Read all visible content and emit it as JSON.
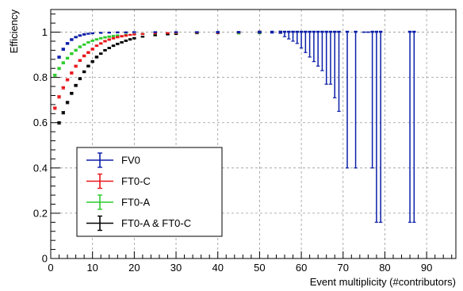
{
  "chart_data": {
    "type": "scatter",
    "style": "error-bars",
    "xlabel": "Event multiplicity (#contributors)",
    "ylabel": "Efficiency",
    "xlim": [
      0,
      97
    ],
    "ylim": [
      0,
      1.1
    ],
    "x_ticks": [
      "0",
      "10",
      "20",
      "30",
      "40",
      "50",
      "60",
      "70",
      "80",
      "90"
    ],
    "y_ticks": [
      "0",
      "0.2",
      "0.4",
      "0.6",
      "0.8",
      "1"
    ],
    "grid": true,
    "legend_position": "bottom-left",
    "series": [
      {
        "name": "FV0",
        "color": "#0b1ea8",
        "points": [
          [
            2,
            0.89,
            0.005
          ],
          [
            3,
            0.925,
            0.005
          ],
          [
            4,
            0.95,
            0.004
          ],
          [
            5,
            0.967,
            0.004
          ],
          [
            6,
            0.978,
            0.003
          ],
          [
            7,
            0.985,
            0.003
          ],
          [
            8,
            0.99,
            0.003
          ],
          [
            9,
            0.993,
            0.002
          ],
          [
            10,
            0.995,
            0.002
          ],
          [
            12,
            0.997,
            0.002
          ],
          [
            14,
            0.998,
            0.002
          ],
          [
            16,
            0.999,
            0.002
          ],
          [
            18,
            0.999,
            0.002
          ],
          [
            20,
            1.0,
            0.002
          ],
          [
            25,
            1.0,
            0.002
          ],
          [
            30,
            1.0,
            0.002
          ],
          [
            35,
            1.0,
            0.002
          ],
          [
            40,
            1.0,
            0.003
          ],
          [
            45,
            1.0,
            0.003
          ],
          [
            50,
            1.0,
            0.004
          ],
          [
            53,
            1.0,
            0.004
          ],
          [
            55,
            1.0,
            0.005
          ],
          [
            56,
            1.0,
            0.02
          ],
          [
            57,
            1.0,
            0.03
          ],
          [
            58,
            1.0,
            0.04
          ],
          [
            59,
            1.0,
            0.05
          ],
          [
            60,
            1.0,
            0.07
          ],
          [
            61,
            1.0,
            0.09
          ],
          [
            62,
            1.0,
            0.11
          ],
          [
            63,
            1.0,
            0.13
          ],
          [
            64,
            1.0,
            0.15
          ],
          [
            65,
            1.0,
            0.17
          ],
          [
            66,
            1.0,
            0.23
          ],
          [
            67,
            1.0,
            0.23
          ],
          [
            68,
            1.0,
            0.29
          ],
          [
            69,
            1.0,
            0.35
          ],
          [
            71,
            1.0,
            0.6
          ],
          [
            73,
            1.0,
            0.6
          ],
          [
            75,
            1.0,
            0.0
          ],
          [
            76,
            1.0,
            0.0
          ],
          [
            77,
            1.0,
            0.6
          ],
          [
            78,
            1.0,
            0.84
          ],
          [
            79,
            1.0,
            0.84
          ],
          [
            86,
            1.0,
            0.84
          ],
          [
            87,
            1.0,
            0.84
          ]
        ]
      },
      {
        "name": "FT0-C",
        "color": "#e8161b",
        "points": [
          [
            1,
            0.665,
            0.006
          ],
          [
            2,
            0.715,
            0.006
          ],
          [
            3,
            0.755,
            0.006
          ],
          [
            4,
            0.79,
            0.005
          ],
          [
            5,
            0.82,
            0.005
          ],
          [
            6,
            0.85,
            0.005
          ],
          [
            7,
            0.875,
            0.004
          ],
          [
            8,
            0.895,
            0.004
          ],
          [
            9,
            0.91,
            0.004
          ],
          [
            10,
            0.925,
            0.004
          ],
          [
            11,
            0.94,
            0.003
          ],
          [
            12,
            0.95,
            0.003
          ],
          [
            13,
            0.96,
            0.003
          ],
          [
            14,
            0.967,
            0.003
          ],
          [
            15,
            0.973,
            0.003
          ],
          [
            16,
            0.978,
            0.003
          ],
          [
            17,
            0.982,
            0.003
          ],
          [
            18,
            0.985,
            0.003
          ],
          [
            19,
            0.988,
            0.002
          ],
          [
            20,
            0.99,
            0.002
          ],
          [
            22,
            0.992,
            0.002
          ],
          [
            25,
            0.995,
            0.002
          ],
          [
            28,
            0.996,
            0.002
          ],
          [
            30,
            0.997,
            0.002
          ],
          [
            35,
            0.998,
            0.002
          ],
          [
            40,
            0.998,
            0.003
          ],
          [
            45,
            0.999,
            0.003
          ],
          [
            50,
            1.0,
            0.004
          ],
          [
            55,
            1.0,
            0.005
          ]
        ]
      },
      {
        "name": "FT0-A",
        "color": "#2ecc2e",
        "points": [
          [
            1,
            0.81,
            0.005
          ],
          [
            2,
            0.84,
            0.005
          ],
          [
            3,
            0.865,
            0.005
          ],
          [
            4,
            0.885,
            0.004
          ],
          [
            5,
            0.905,
            0.004
          ],
          [
            6,
            0.92,
            0.004
          ],
          [
            7,
            0.935,
            0.004
          ],
          [
            8,
            0.945,
            0.003
          ],
          [
            9,
            0.955,
            0.003
          ],
          [
            10,
            0.962,
            0.003
          ],
          [
            11,
            0.968,
            0.003
          ],
          [
            12,
            0.973,
            0.003
          ],
          [
            13,
            0.977,
            0.003
          ],
          [
            14,
            0.98,
            0.003
          ],
          [
            15,
            0.983,
            0.003
          ],
          [
            16,
            0.985,
            0.003
          ],
          [
            18,
            0.988,
            0.003
          ],
          [
            20,
            0.99,
            0.002
          ],
          [
            22,
            0.992,
            0.002
          ],
          [
            25,
            0.994,
            0.002
          ],
          [
            30,
            0.996,
            0.002
          ],
          [
            35,
            0.997,
            0.002
          ],
          [
            40,
            0.998,
            0.003
          ],
          [
            45,
            0.995,
            0.003
          ],
          [
            50,
            0.997,
            0.004
          ],
          [
            55,
            1.0,
            0.005
          ]
        ]
      },
      {
        "name": "FT0-A & FT0-C",
        "color": "#000000",
        "points": [
          [
            2,
            0.6,
            0.006
          ],
          [
            3,
            0.645,
            0.006
          ],
          [
            4,
            0.69,
            0.006
          ],
          [
            5,
            0.73,
            0.005
          ],
          [
            6,
            0.765,
            0.005
          ],
          [
            7,
            0.795,
            0.005
          ],
          [
            8,
            0.825,
            0.004
          ],
          [
            9,
            0.85,
            0.004
          ],
          [
            10,
            0.87,
            0.004
          ],
          [
            11,
            0.89,
            0.004
          ],
          [
            12,
            0.905,
            0.003
          ],
          [
            13,
            0.92,
            0.003
          ],
          [
            14,
            0.93,
            0.003
          ],
          [
            15,
            0.94,
            0.003
          ],
          [
            16,
            0.948,
            0.003
          ],
          [
            17,
            0.955,
            0.003
          ],
          [
            18,
            0.962,
            0.003
          ],
          [
            19,
            0.968,
            0.003
          ],
          [
            20,
            0.973,
            0.003
          ],
          [
            22,
            0.98,
            0.002
          ],
          [
            25,
            0.986,
            0.002
          ],
          [
            28,
            0.99,
            0.002
          ],
          [
            30,
            0.992,
            0.002
          ],
          [
            35,
            0.995,
            0.002
          ],
          [
            40,
            0.997,
            0.003
          ],
          [
            45,
            0.998,
            0.003
          ],
          [
            50,
            1.0,
            0.004
          ]
        ]
      }
    ]
  }
}
